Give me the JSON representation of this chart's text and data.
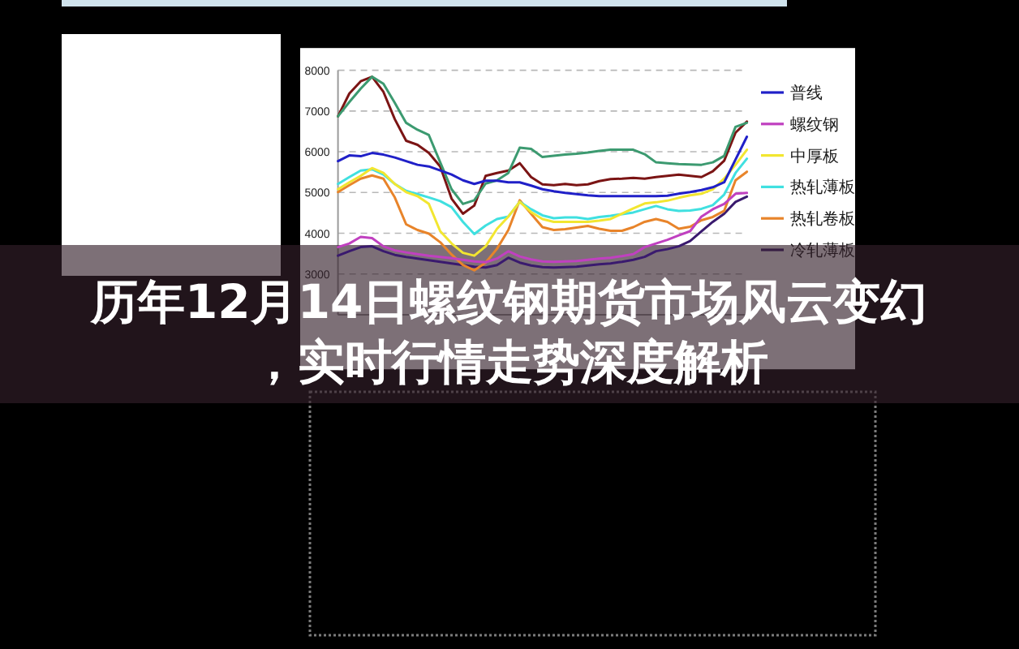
{
  "chart_data": {
    "type": "line",
    "title": "历年12月14日螺纹钢期货市场风云变幻，实时行情走势深度解析",
    "categories": [
      null,
      null,
      null,
      null,
      null,
      null,
      null,
      null,
      null,
      null,
      null,
      null,
      null,
      null,
      null,
      null,
      null,
      null,
      null,
      null,
      null,
      null,
      null,
      null,
      null,
      null,
      null,
      null,
      null,
      null,
      null,
      null,
      null,
      null,
      null,
      null,
      null
    ],
    "series": [
      {
        "name": "普线",
        "color": "#2020c8",
        "values": [
          5770,
          5910,
          5890,
          5970,
          5930,
          5860,
          5770,
          5680,
          5640,
          5540,
          5440,
          5300,
          5210,
          5290,
          5290,
          5250,
          5250,
          5170,
          5080,
          5030,
          4990,
          4960,
          4930,
          4910,
          4910,
          4910,
          4910,
          4910,
          4910,
          4920,
          4970,
          5010,
          5060,
          5130,
          5250,
          5810,
          6370
        ]
      },
      {
        "name": "螺纹钢",
        "color": "#c040c0",
        "values": [
          3660,
          3750,
          3910,
          3880,
          3680,
          3580,
          3530,
          3490,
          3450,
          3420,
          3390,
          3350,
          3310,
          3290,
          3380,
          3560,
          3430,
          3360,
          3310,
          3300,
          3310,
          3320,
          3350,
          3380,
          3400,
          3440,
          3490,
          3660,
          3750,
          3840,
          3950,
          4050,
          4410,
          4590,
          4720,
          4970,
          4990
        ]
      },
      {
        "name": "中厚板",
        "color": "#f2e630",
        "values": [
          5080,
          5250,
          5410,
          5600,
          5480,
          5210,
          5010,
          4910,
          4720,
          4050,
          3750,
          3520,
          3450,
          3680,
          4110,
          4410,
          4770,
          4520,
          4350,
          4280,
          4280,
          4280,
          4280,
          4310,
          4350,
          4480,
          4610,
          4730,
          4760,
          4800,
          4870,
          4930,
          4970,
          5080,
          5340,
          5680,
          6050
        ]
      },
      {
        "name": "热轧薄板",
        "color": "#40e0e0",
        "values": [
          5210,
          5380,
          5540,
          5570,
          5440,
          5210,
          5040,
          4960,
          4880,
          4790,
          4640,
          4280,
          3980,
          4190,
          4350,
          4410,
          4770,
          4590,
          4440,
          4370,
          4390,
          4390,
          4350,
          4400,
          4430,
          4470,
          4510,
          4590,
          4670,
          4590,
          4550,
          4560,
          4600,
          4690,
          4950,
          5480,
          5830
        ]
      },
      {
        "name": "热轧卷板",
        "color": "#e8842a",
        "values": [
          5010,
          5180,
          5340,
          5420,
          5340,
          4880,
          4220,
          4080,
          3990,
          3780,
          3480,
          3220,
          3090,
          3280,
          3620,
          4080,
          4810,
          4480,
          4150,
          4080,
          4100,
          4140,
          4180,
          4110,
          4060,
          4060,
          4150,
          4280,
          4350,
          4280,
          4110,
          4160,
          4320,
          4400,
          4550,
          5300,
          5510
        ]
      },
      {
        "name": "冷轧薄板",
        "color": "#3a1a6e",
        "values": [
          3450,
          3560,
          3660,
          3680,
          3560,
          3470,
          3420,
          3380,
          3340,
          3300,
          3260,
          3220,
          3180,
          3160,
          3220,
          3400,
          3280,
          3210,
          3170,
          3160,
          3170,
          3180,
          3210,
          3240,
          3260,
          3300,
          3350,
          3420,
          3560,
          3610,
          3680,
          3810,
          4050,
          4280,
          4480,
          4770,
          4900
        ]
      },
      {
        "color": "#3c9a70",
        "values": [
          6870,
          7220,
          7550,
          7840,
          7670,
          7200,
          6710,
          6540,
          6410,
          5740,
          5080,
          4720,
          4810,
          5220,
          5300,
          5480,
          6100,
          6070,
          5870,
          5900,
          5930,
          5950,
          5980,
          6020,
          6050,
          6050,
          6050,
          5940,
          5740,
          5720,
          5700,
          5690,
          5680,
          5740,
          5900,
          6610,
          6710
        ]
      },
      {
        "color": "#7b1414",
        "values": [
          6870,
          7430,
          7730,
          7840,
          7470,
          6800,
          6270,
          6170,
          5970,
          5640,
          4850,
          4480,
          4680,
          5410,
          5480,
          5540,
          5720,
          5380,
          5200,
          5180,
          5210,
          5180,
          5200,
          5280,
          5330,
          5340,
          5360,
          5340,
          5380,
          5410,
          5440,
          5410,
          5380,
          5520,
          5780,
          6470,
          6740
        ]
      }
    ],
    "ylim": [
      2000,
      8000
    ],
    "yticks": [
      {
        "value": 2000,
        "label": null
      },
      3000,
      4000,
      5000,
      6000,
      7000,
      8000
    ],
    "grid": "y",
    "legend": "right"
  }
}
